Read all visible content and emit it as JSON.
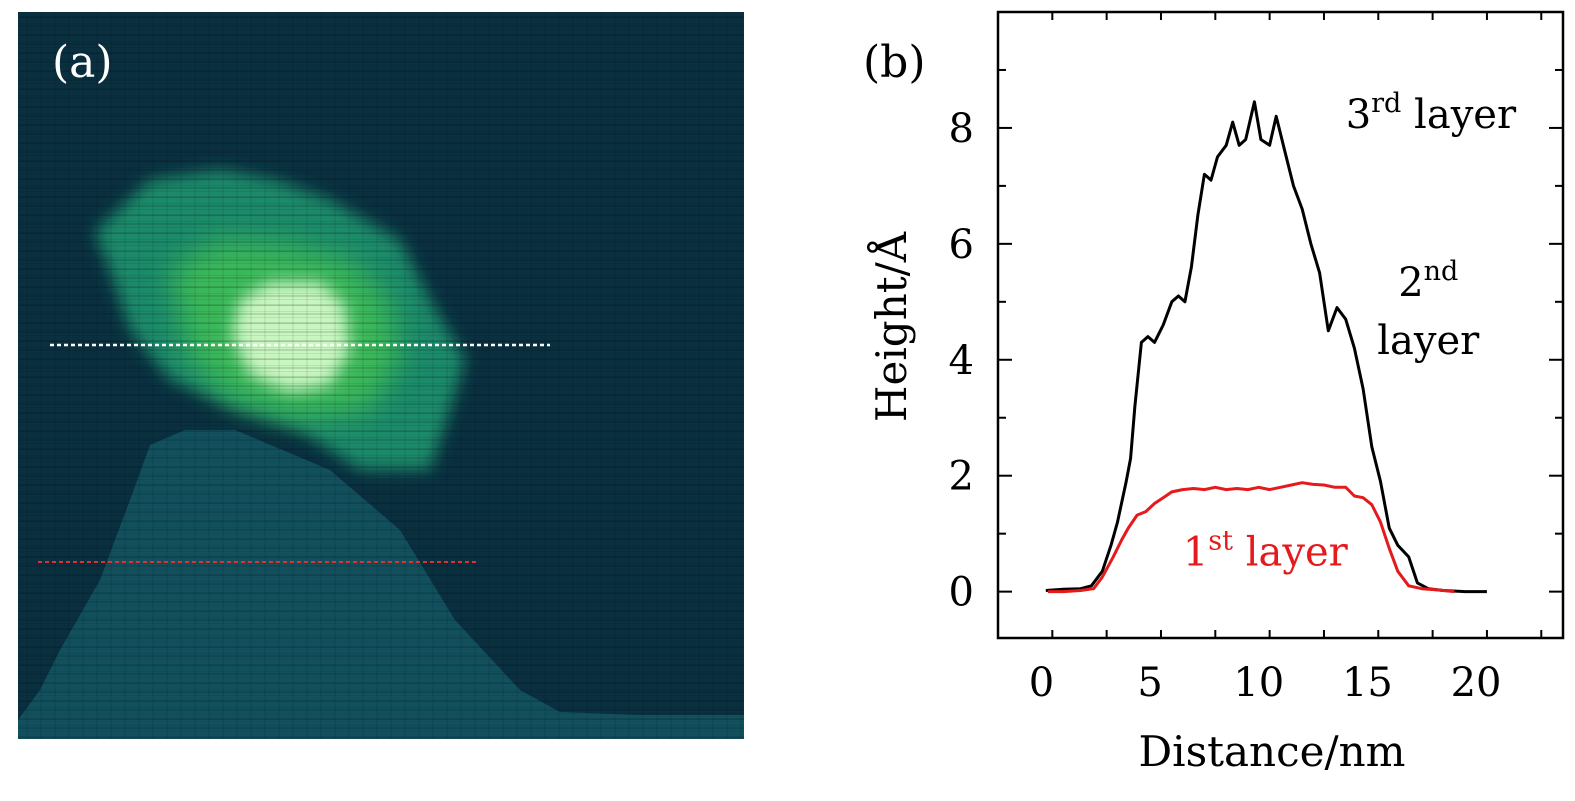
{
  "panel_a": {
    "label": "(a)",
    "colors": {
      "background": "#0a3040",
      "substrate": "#13505e",
      "layer1": "#1e8a6a",
      "layer2": "#3ab85a",
      "layer3": "#c8f6c0",
      "line_white": "#ffffff",
      "line_red": "#e03030"
    }
  },
  "chart_data": {
    "type": "line",
    "panel_label": "(b)",
    "xlabel": "Distance/nm",
    "ylabel": "Height/Å",
    "xlim": [
      -2,
      24
    ],
    "ylim": [
      -0.8,
      10
    ],
    "xticks": [
      0,
      5,
      10,
      15,
      20
    ],
    "yticks": [
      0,
      2,
      4,
      6,
      8
    ],
    "grid": false,
    "series": [
      {
        "name": "black-profile",
        "color": "#000000",
        "points": [
          [
            0.2,
            0.02
          ],
          [
            1.0,
            0.04
          ],
          [
            1.8,
            0.05
          ],
          [
            2.3,
            0.1
          ],
          [
            2.8,
            0.35
          ],
          [
            3.2,
            0.8
          ],
          [
            3.5,
            1.2
          ],
          [
            3.9,
            1.9
          ],
          [
            4.1,
            2.3
          ],
          [
            4.3,
            3.2
          ],
          [
            4.6,
            4.3
          ],
          [
            4.9,
            4.4
          ],
          [
            5.2,
            4.3
          ],
          [
            5.6,
            4.6
          ],
          [
            6.0,
            5.0
          ],
          [
            6.3,
            5.1
          ],
          [
            6.6,
            5.0
          ],
          [
            6.9,
            5.6
          ],
          [
            7.2,
            6.5
          ],
          [
            7.5,
            7.2
          ],
          [
            7.8,
            7.1
          ],
          [
            8.1,
            7.5
          ],
          [
            8.5,
            7.7
          ],
          [
            8.8,
            8.1
          ],
          [
            9.1,
            7.7
          ],
          [
            9.4,
            7.8
          ],
          [
            9.8,
            8.45
          ],
          [
            10.1,
            7.8
          ],
          [
            10.5,
            7.7
          ],
          [
            10.8,
            8.2
          ],
          [
            11.2,
            7.6
          ],
          [
            11.6,
            7.0
          ],
          [
            12.0,
            6.6
          ],
          [
            12.4,
            6.0
          ],
          [
            12.8,
            5.5
          ],
          [
            13.2,
            4.5
          ],
          [
            13.6,
            4.9
          ],
          [
            14.0,
            4.7
          ],
          [
            14.4,
            4.2
          ],
          [
            14.8,
            3.5
          ],
          [
            15.2,
            2.5
          ],
          [
            15.6,
            1.9
          ],
          [
            16.0,
            1.1
          ],
          [
            16.4,
            0.8
          ],
          [
            16.9,
            0.6
          ],
          [
            17.3,
            0.15
          ],
          [
            17.8,
            0.05
          ],
          [
            18.5,
            0.02
          ],
          [
            19.5,
            0.0
          ],
          [
            20.5,
            0.0
          ]
        ]
      },
      {
        "name": "red-profile",
        "color": "#e41a1c",
        "points": [
          [
            0.3,
            0.0
          ],
          [
            1.0,
            0.0
          ],
          [
            1.8,
            0.02
          ],
          [
            2.4,
            0.05
          ],
          [
            2.8,
            0.25
          ],
          [
            3.3,
            0.6
          ],
          [
            3.7,
            0.9
          ],
          [
            4.0,
            1.1
          ],
          [
            4.4,
            1.32
          ],
          [
            4.8,
            1.38
          ],
          [
            5.2,
            1.52
          ],
          [
            5.6,
            1.62
          ],
          [
            6.0,
            1.72
          ],
          [
            6.5,
            1.76
          ],
          [
            7.0,
            1.78
          ],
          [
            7.5,
            1.76
          ],
          [
            8.0,
            1.8
          ],
          [
            8.5,
            1.76
          ],
          [
            9.0,
            1.78
          ],
          [
            9.5,
            1.76
          ],
          [
            10.0,
            1.8
          ],
          [
            10.5,
            1.76
          ],
          [
            11.0,
            1.8
          ],
          [
            11.5,
            1.84
          ],
          [
            12.0,
            1.88
          ],
          [
            12.5,
            1.85
          ],
          [
            13.0,
            1.84
          ],
          [
            13.5,
            1.8
          ],
          [
            14.0,
            1.8
          ],
          [
            14.4,
            1.65
          ],
          [
            14.8,
            1.62
          ],
          [
            15.2,
            1.5
          ],
          [
            15.6,
            1.2
          ],
          [
            16.0,
            0.75
          ],
          [
            16.4,
            0.35
          ],
          [
            16.9,
            0.1
          ],
          [
            17.5,
            0.05
          ],
          [
            18.2,
            0.03
          ],
          [
            19.0,
            0.0
          ]
        ]
      }
    ],
    "annotations": [
      {
        "base": "3",
        "sup": "rd",
        "rest": " layer",
        "x": 14.0,
        "y": 8.0,
        "anchor": "start",
        "color": "#000000"
      },
      {
        "base": "2",
        "sup": "nd",
        "rest": "",
        "x": 17.8,
        "y": 5.1,
        "anchor": "middle",
        "color": "#000000"
      },
      {
        "base": "",
        "sup": "",
        "rest": "layer",
        "x": 17.8,
        "y": 4.1,
        "anchor": "middle",
        "color": "#000000"
      },
      {
        "base": "1",
        "sup": "st",
        "rest": " layer",
        "x": 10.3,
        "y": 0.45,
        "anchor": "middle",
        "color": "#e41a1c"
      }
    ]
  }
}
